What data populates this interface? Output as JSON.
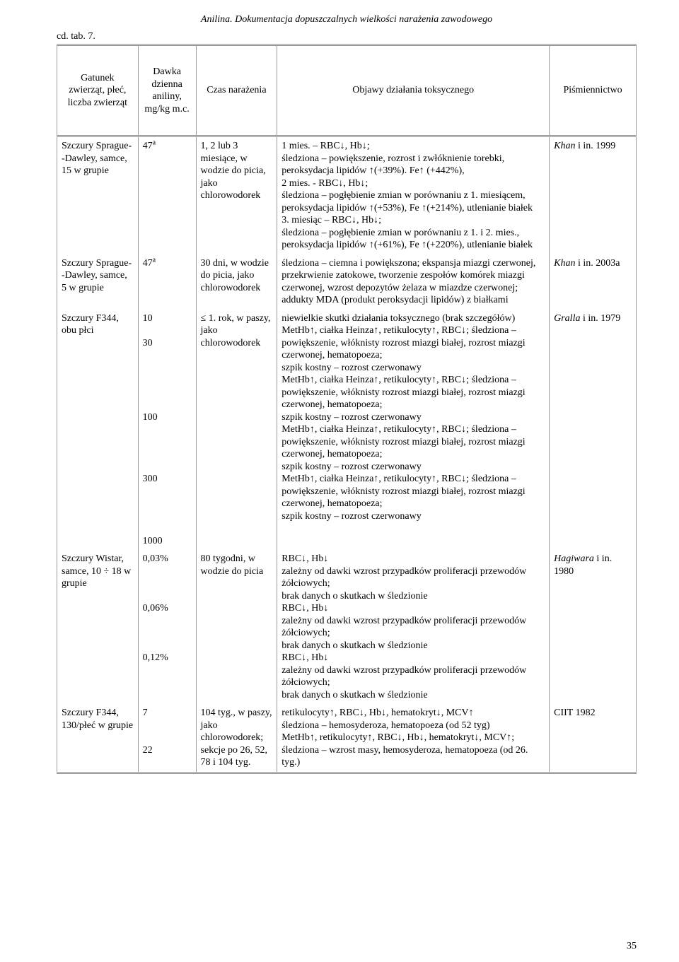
{
  "header": "Anilina. Dokumentacja dopuszczalnych wielkości narażenia zawodowego",
  "cdtab": "cd. tab. 7.",
  "columns": {
    "c1": "Gatunek zwierząt, płeć, liczba zwierząt",
    "c2": "Dawka dzienna aniliny, mg/kg m.c.",
    "c3": "Czas narażenia",
    "c4": "Objawy działania toksycznego",
    "c5": "Piśmiennictwo"
  },
  "rows": [
    {
      "species": "Szczury Sprague- -Dawley, samce, 15 w grupie",
      "dose_html": "47<sup>a</sup>",
      "time": "1, 2 lub 3 miesiące, w wodzie do picia, jako chlorowodorek",
      "effects": "1 mies. – RBC↓, Hb↓;\nśledziona – powiększenie, rozrost i zwłóknienie torebki, peroksydacja lipidów ↑(+39%). Fe↑ (+442%),\n2 mies. - RBC↓, Hb↓;\nśledziona – pogłębienie zmian w porównaniu z 1. miesiącem, peroksydacja lipidów ↑(+53%), Fe ↑(+214%), utlenianie białek\n3. miesiąc – RBC↓, Hb↓;\nśledziona – pogłębienie zmian w porównaniu z 1. i 2. mies., peroksydacja lipidów ↑(+61%), Fe ↑(+220%), utlenianie białek",
      "ref_html": "<span class=\"italic\">Khan</span> i in. 1999"
    },
    {
      "species": "Szczury Sprague- -Dawley, samce, 5 w grupie",
      "dose_html": "47<sup>a</sup>",
      "time": "30 dni, w wodzie do picia, jako chlorowodorek",
      "effects": "śledziona – ciemna i powiększona; ekspansja miazgi czerwonej, przekrwienie zatokowe, tworzenie zespołów komórek miazgi czerwonej, wzrost depozytów żelaza w miazdze czerwonej; addukty MDA (produkt peroksydacji lipidów) z białkami",
      "ref_html": "<span class=\"italic\">Khan</span> i in. 2003a"
    },
    {
      "species": "Szczury F344, obu płci",
      "dose_html": "10\n\n30\n\n\n\n\n\n100\n\n\n\n\n300\n\n\n\n\n1000",
      "time": "≤ 1. rok, w paszy, jako chlorowodorek",
      "effects": "niewielkie skutki działania toksycznego (brak szczegółów)\nMetHb↑, ciałka Heinza↑, retikulocyty↑, RBC↓; śledziona – powiększenie, włóknisty rozrost miazgi białej, rozrost miazgi czerwonej, hematopoeza;\nszpik kostny – rozrost czerwonawy\nMetHb↑, ciałka Heinza↑, retikulocyty↑, RBC↓; śledziona – powiększenie, włóknisty rozrost miazgi białej, rozrost miazgi czerwonej, hematopoeza;\nszpik kostny – rozrost czerwonawy\nMetHb↑, ciałka Heinza↑, retikulocyty↑, RBC↓; śledziona – powiększenie, włóknisty rozrost miazgi białej, rozrost miazgi czerwonej, hematopoeza;\nszpik kostny – rozrost czerwonawy\nMetHb↑, ciałka Heinza↑, retikulocyty↑, RBC↓; śledziona – powiększenie, włóknisty rozrost miazgi białej, rozrost miazgi czerwonej, hematopoeza;\nszpik kostny – rozrost czerwonawy",
      "ref_html": "<span class=\"italic\">Gralla</span> i in. 1979"
    },
    {
      "species": "Szczury Wistar, samce, 10 ÷ 18 w grupie",
      "dose_html": "0,03%\n\n\n\n0,06%\n\n\n\n0,12%",
      "time": "80 tygodni, w wodzie do picia",
      "effects": "RBC↓, Hb↓\nzależny od dawki wzrost przypadków proliferacji przewodów żółciowych;\nbrak danych o skutkach w śledzionie\nRBC↓, Hb↓\nzależny od dawki wzrost przypadków proliferacji przewodów żółciowych;\nbrak danych o skutkach w śledzionie\nRBC↓, Hb↓\nzależny od dawki wzrost przypadków proliferacji przewodów żółciowych;\nbrak danych o skutkach w śledzionie",
      "ref_html": "<span class=\"italic\">Hagiwara</span> i in. 1980"
    },
    {
      "species": "Szczury F344, 130/płeć w grupie",
      "dose_html": "7\n\n\n22",
      "time": "104 tyg., w paszy, jako chlorowodorek; sekcje po 26, 52, 78 i 104 tyg.",
      "effects": "retikulocyty↑, RBC↓, Hb↓, hematokryt↓, MCV↑\nśledziona – hemosyderoza, hematopoeza (od 52 tyg)\nMetHb↑, retikulocyty↑, RBC↓, Hb↓, hematokryt↓, MCV↑;\nśledziona – wzrost masy, hemosyderoza, hematopoeza (od 26. tyg.)",
      "ref_html": "CIIT 1982"
    }
  ],
  "page_number": "35"
}
